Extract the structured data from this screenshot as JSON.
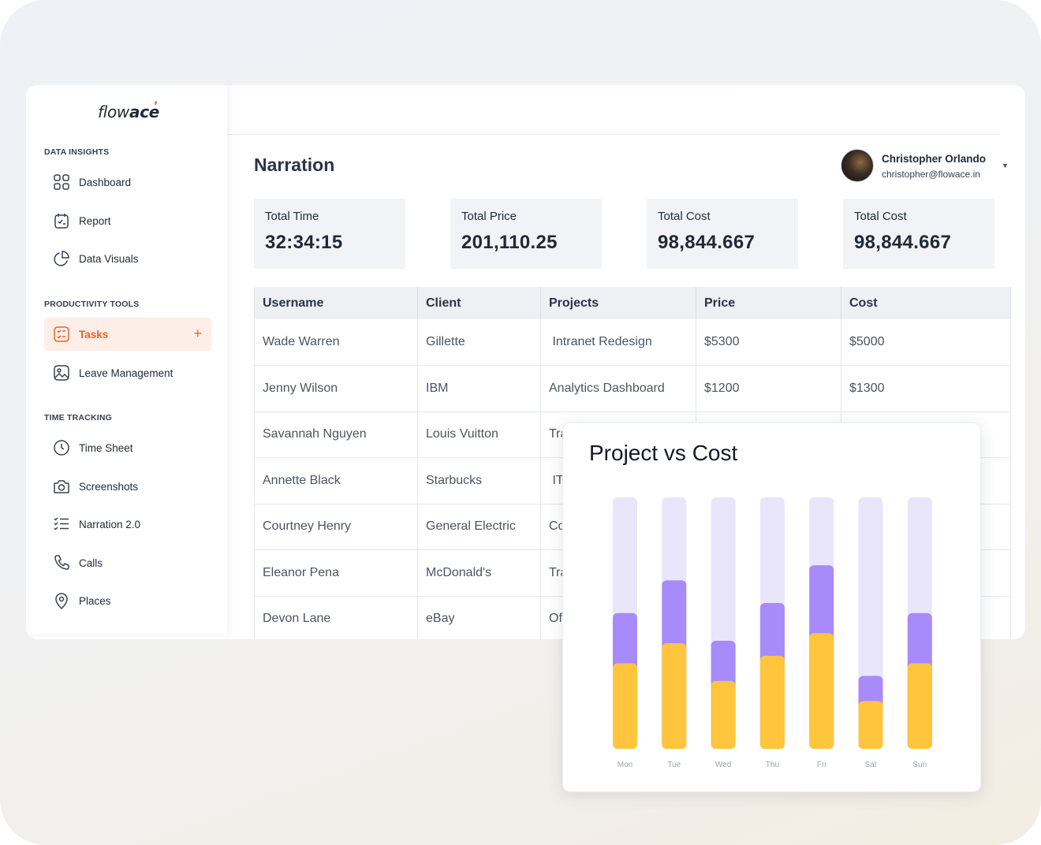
{
  "app": {
    "logo_light": "flow",
    "logo_bold": "ace",
    "logo_mark": "’"
  },
  "sidebar": {
    "sections": [
      {
        "label": "DATA INSIGHTS",
        "items": [
          {
            "label": "Dashboard",
            "icon": "grid-icon"
          },
          {
            "label": "Report",
            "icon": "report-icon"
          },
          {
            "label": "Data Visuals",
            "icon": "pie-chart-icon"
          }
        ]
      },
      {
        "label": "PRODUCTIVITY TOOLS",
        "items": [
          {
            "label": "Tasks",
            "icon": "tasks-icon",
            "active": true,
            "action": "+"
          },
          {
            "label": "Leave Management",
            "icon": "image-icon"
          }
        ]
      },
      {
        "label": "TIME TRACKING",
        "items": [
          {
            "label": "Time Sheet",
            "icon": "clock-icon"
          },
          {
            "label": "Screenshots",
            "icon": "camera-icon"
          },
          {
            "label": "Narration 2.0",
            "icon": "checklist-icon"
          },
          {
            "label": "Calls",
            "icon": "phone-icon"
          },
          {
            "label": "Places",
            "icon": "location-pin-icon"
          }
        ]
      }
    ]
  },
  "header": {
    "title": "Narration",
    "user": {
      "name": "Christopher Orlando",
      "email": "christopher@flowace.in"
    }
  },
  "stats": [
    {
      "label": "Total Time",
      "value": "32:34:15"
    },
    {
      "label": "Total Price",
      "value": "201,110.25"
    },
    {
      "label": "Total Cost",
      "value": "98,844.667"
    },
    {
      "label": "Total Cost",
      "value": "98,844.667"
    }
  ],
  "table": {
    "columns": [
      "Username",
      "Client",
      "Projects",
      "Price",
      "Cost"
    ],
    "rows": [
      [
        "Wade Warren",
        "Gillette",
        " Intranet Redesign",
        "$5300",
        "$5000"
      ],
      [
        "Jenny Wilson",
        "IBM",
        "Analytics Dashboard",
        "$1200",
        "$1300"
      ],
      [
        "Savannah Nguyen",
        "Louis Vuitton",
        "Tra",
        "",
        ""
      ],
      [
        "Annette Black",
        "Starbucks",
        " IT",
        "",
        ""
      ],
      [
        "Courtney Henry",
        "General Electric",
        "Co",
        "",
        ""
      ],
      [
        "Eleanor Pena",
        "McDonald's",
        "Tra",
        "",
        ""
      ],
      [
        "Devon Lane",
        "eBay",
        "Of",
        "",
        ""
      ]
    ]
  },
  "chart_data": {
    "type": "bar",
    "title": "Project vs Cost",
    "categories": [
      "Mon",
      "Tue",
      "Wed",
      "Thu",
      "Fri",
      "Sat",
      "Sun"
    ],
    "stacked": true,
    "ylim": [
      0,
      100
    ],
    "series": [
      {
        "name": "",
        "color": "#fec53d",
        "values": [
          34,
          42,
          27,
          37,
          46,
          19,
          34
        ]
      },
      {
        "name": "",
        "color": "#a78bfa",
        "values": [
          20,
          25,
          16,
          21,
          27,
          10,
          20
        ]
      }
    ],
    "track_color": "#e9e6fb"
  }
}
